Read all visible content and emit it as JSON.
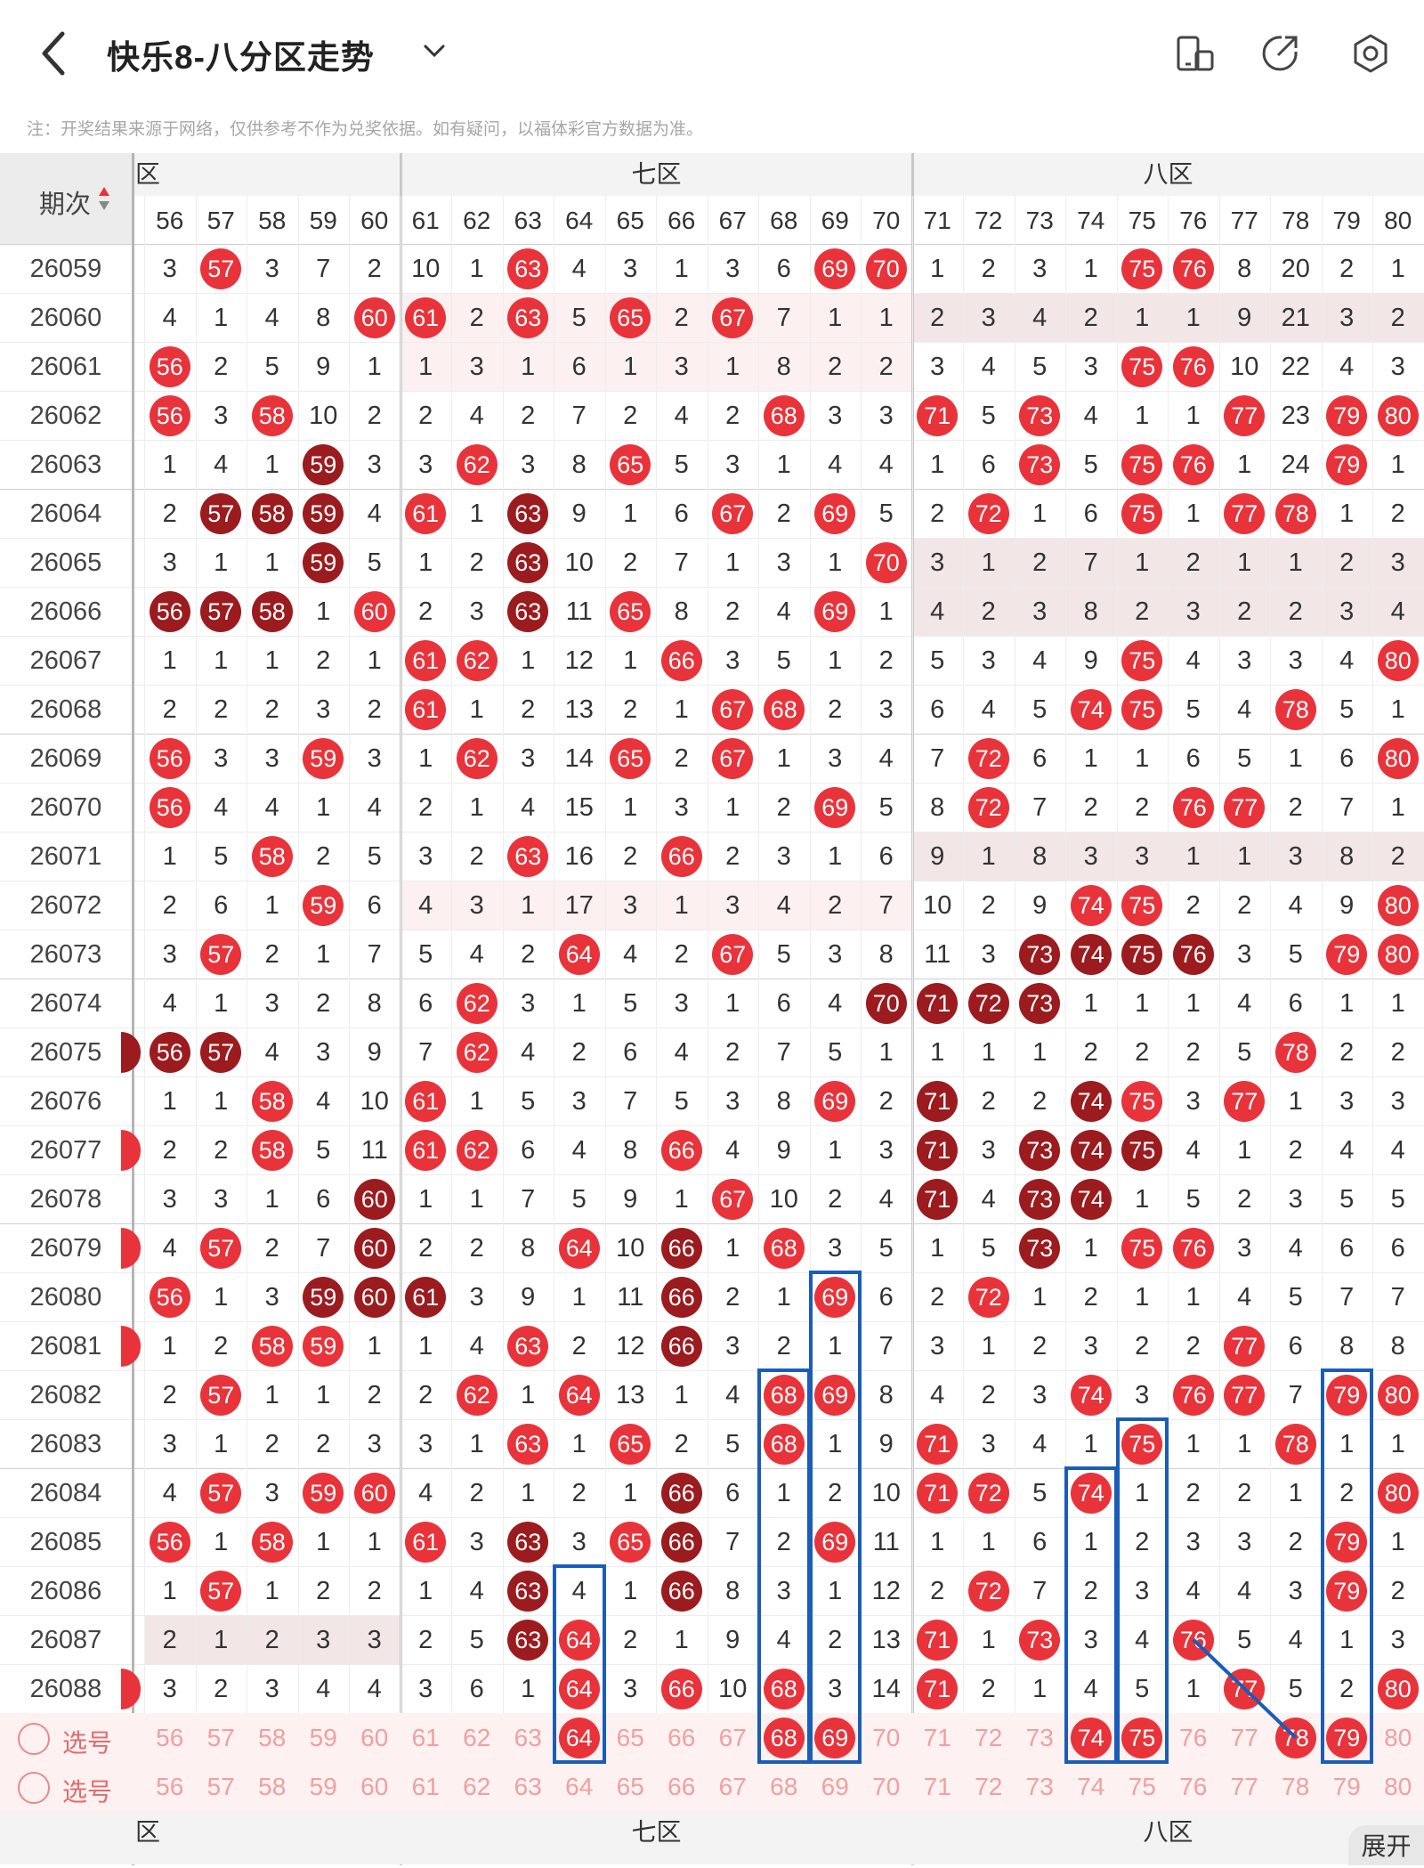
{
  "header": {
    "title": "快乐8-八分区走势",
    "back_icon": "chevron-left-icon",
    "dropdown_icon": "chevron-down-icon",
    "icons": [
      "device-switch-icon",
      "share-icon",
      "settings-icon"
    ]
  },
  "notice": "注：开奖结果来源于网络，仅供参考不作为兑奖依据。如有疑问，以福体彩官方数据为准。",
  "table": {
    "period_header": "期次",
    "zones": [
      {
        "label": "六区",
        "visible_text": "区"
      },
      {
        "label": "七区",
        "visible_text": "七区"
      },
      {
        "label": "八区",
        "visible_text": "八区"
      }
    ],
    "columns": [
      56,
      57,
      58,
      59,
      60,
      61,
      62,
      63,
      64,
      65,
      66,
      67,
      68,
      69,
      70,
      71,
      72,
      73,
      74,
      75,
      76,
      77,
      78,
      79,
      80
    ],
    "rows": [
      {
        "p": "26059",
        "v": [
          3,
          "R57",
          3,
          7,
          2,
          10,
          1,
          "R63",
          4,
          3,
          1,
          3,
          6,
          "R69",
          "R70",
          1,
          2,
          3,
          1,
          "R75",
          "R76",
          8,
          20,
          2,
          1
        ]
      },
      {
        "p": "26060",
        "v": [
          4,
          1,
          4,
          8,
          "R60",
          "R61",
          2,
          "R63",
          5,
          "R65",
          2,
          "R67",
          7,
          1,
          1,
          2,
          3,
          4,
          2,
          1,
          1,
          9,
          21,
          3,
          2
        ]
      },
      {
        "p": "26061",
        "v": [
          "R56",
          2,
          5,
          9,
          1,
          1,
          3,
          1,
          6,
          1,
          3,
          1,
          8,
          2,
          2,
          3,
          4,
          5,
          3,
          "R75",
          "R76",
          10,
          22,
          4,
          3
        ]
      },
      {
        "p": "26062",
        "v": [
          "R56",
          3,
          "R58",
          10,
          2,
          2,
          4,
          2,
          7,
          2,
          4,
          2,
          "R68",
          3,
          3,
          "R71",
          5,
          "R73",
          4,
          1,
          1,
          "R77",
          23,
          "R79",
          "R80"
        ]
      },
      {
        "p": "26063",
        "v": [
          1,
          4,
          1,
          "D59",
          3,
          3,
          "R62",
          3,
          8,
          "R65",
          5,
          3,
          1,
          4,
          4,
          1,
          6,
          "R73",
          5,
          "R75",
          "R76",
          1,
          24,
          "R79",
          1
        ]
      },
      {
        "p": "26064",
        "v": [
          2,
          "D57",
          "D58",
          "D59",
          4,
          "R61",
          1,
          "D63",
          9,
          1,
          6,
          "R67",
          2,
          "R69",
          5,
          2,
          "R72",
          1,
          6,
          "R75",
          1,
          "R77",
          "R78",
          1,
          2
        ]
      },
      {
        "p": "26065",
        "v": [
          3,
          1,
          1,
          "D59",
          5,
          1,
          2,
          "D63",
          10,
          2,
          7,
          1,
          3,
          1,
          "R70",
          3,
          1,
          2,
          7,
          1,
          2,
          1,
          1,
          2,
          3
        ]
      },
      {
        "p": "26066",
        "v": [
          "D56",
          "D57",
          "D58",
          1,
          "R60",
          2,
          3,
          "D63",
          11,
          "R65",
          8,
          2,
          4,
          "R69",
          1,
          4,
          2,
          3,
          8,
          2,
          3,
          2,
          2,
          3,
          4
        ]
      },
      {
        "p": "26067",
        "v": [
          1,
          1,
          1,
          2,
          1,
          "R61",
          "R62",
          1,
          12,
          1,
          "R66",
          3,
          5,
          1,
          2,
          5,
          3,
          4,
          9,
          "R75",
          4,
          3,
          3,
          4,
          "R80"
        ]
      },
      {
        "p": "26068",
        "v": [
          2,
          2,
          2,
          3,
          2,
          "R61",
          1,
          2,
          13,
          2,
          1,
          "R67",
          "R68",
          2,
          3,
          6,
          4,
          5,
          "R74",
          "R75",
          5,
          4,
          "R78",
          5,
          1
        ]
      },
      {
        "p": "26069",
        "v": [
          "R56",
          3,
          3,
          "R59",
          3,
          1,
          "R62",
          3,
          14,
          "R65",
          2,
          "R67",
          1,
          3,
          4,
          7,
          "R72",
          6,
          1,
          1,
          6,
          5,
          1,
          6,
          "R80"
        ]
      },
      {
        "p": "26070",
        "v": [
          "R56",
          4,
          4,
          1,
          4,
          2,
          1,
          4,
          15,
          1,
          3,
          1,
          2,
          "R69",
          5,
          8,
          "R72",
          7,
          2,
          2,
          "R76",
          "R77",
          2,
          7,
          1
        ]
      },
      {
        "p": "26071",
        "v": [
          1,
          5,
          "R58",
          2,
          5,
          3,
          2,
          "R63",
          16,
          2,
          "R66",
          2,
          3,
          1,
          6,
          9,
          1,
          8,
          3,
          3,
          1,
          1,
          3,
          8,
          2
        ]
      },
      {
        "p": "26072",
        "v": [
          2,
          6,
          1,
          "R59",
          6,
          4,
          3,
          1,
          17,
          3,
          1,
          3,
          4,
          2,
          7,
          10,
          2,
          9,
          "R74",
          "R75",
          2,
          2,
          4,
          9,
          "R80"
        ]
      },
      {
        "p": "26073",
        "v": [
          3,
          "R57",
          2,
          1,
          7,
          5,
          4,
          2,
          "R64",
          4,
          2,
          "R67",
          5,
          3,
          8,
          11,
          3,
          "D73",
          "D74",
          "D75",
          "D76",
          3,
          5,
          "R79",
          "R80"
        ]
      },
      {
        "p": "26074",
        "v": [
          4,
          1,
          3,
          2,
          8,
          6,
          "R62",
          3,
          1,
          5,
          3,
          1,
          6,
          4,
          "D70",
          "D71",
          "D72",
          "D73",
          1,
          1,
          1,
          4,
          6,
          1,
          1
        ]
      },
      {
        "p": "26075",
        "v": [
          "D56",
          "D57",
          4,
          3,
          9,
          7,
          "R62",
          4,
          2,
          6,
          4,
          2,
          7,
          5,
          1,
          1,
          1,
          1,
          2,
          2,
          2,
          5,
          "R78",
          2,
          2
        ]
      },
      {
        "p": "26076",
        "v": [
          1,
          1,
          "R58",
          4,
          10,
          "R61",
          1,
          5,
          3,
          7,
          5,
          3,
          8,
          "R69",
          2,
          "D71",
          2,
          2,
          "D74",
          "R75",
          3,
          "R77",
          1,
          3,
          3
        ]
      },
      {
        "p": "26077",
        "v": [
          2,
          2,
          "R58",
          5,
          11,
          "R61",
          "R62",
          6,
          4,
          8,
          "R66",
          4,
          9,
          1,
          3,
          "D71",
          3,
          "D73",
          "D74",
          "D75",
          4,
          1,
          2,
          4,
          4
        ]
      },
      {
        "p": "26078",
        "v": [
          3,
          3,
          1,
          6,
          "D60",
          1,
          1,
          7,
          5,
          9,
          1,
          "R67",
          10,
          2,
          4,
          "D71",
          4,
          "D73",
          "D74",
          1,
          5,
          2,
          3,
          5,
          5
        ]
      },
      {
        "p": "26079",
        "v": [
          4,
          "R57",
          2,
          7,
          "D60",
          2,
          2,
          8,
          "R64",
          10,
          "D66",
          1,
          "R68",
          3,
          5,
          1,
          5,
          "D73",
          1,
          "R75",
          "R76",
          3,
          4,
          6,
          6
        ]
      },
      {
        "p": "26080",
        "v": [
          "R56",
          1,
          3,
          "D59",
          "D60",
          "D61",
          3,
          9,
          1,
          11,
          "D66",
          2,
          1,
          "R69",
          6,
          2,
          "R72",
          1,
          2,
          1,
          1,
          4,
          5,
          7,
          7
        ]
      },
      {
        "p": "26081",
        "v": [
          1,
          2,
          "R58",
          "R59",
          1,
          1,
          4,
          "R63",
          2,
          12,
          "D66",
          3,
          2,
          1,
          7,
          3,
          1,
          2,
          3,
          2,
          2,
          "R77",
          6,
          8,
          8
        ]
      },
      {
        "p": "26082",
        "v": [
          2,
          "R57",
          1,
          1,
          2,
          2,
          "R62",
          1,
          "R64",
          13,
          1,
          4,
          "R68",
          "R69",
          8,
          4,
          2,
          3,
          "R74",
          3,
          "R76",
          "R77",
          7,
          "R79",
          "R80"
        ]
      },
      {
        "p": "26083",
        "v": [
          3,
          1,
          2,
          2,
          3,
          3,
          1,
          "R63",
          1,
          "R65",
          2,
          5,
          "R68",
          1,
          9,
          "R71",
          3,
          4,
          1,
          "R75",
          1,
          1,
          "R78",
          1,
          1
        ]
      },
      {
        "p": "26084",
        "v": [
          4,
          "R57",
          3,
          "R59",
          "R60",
          4,
          2,
          1,
          2,
          1,
          "D66",
          6,
          1,
          2,
          10,
          "R71",
          "R72",
          5,
          "R74",
          1,
          2,
          2,
          1,
          2,
          "R80"
        ]
      },
      {
        "p": "26085",
        "v": [
          "R56",
          1,
          "R58",
          1,
          1,
          "R61",
          3,
          "D63",
          3,
          "R65",
          "D66",
          7,
          2,
          "R69",
          11,
          1,
          1,
          6,
          1,
          2,
          3,
          3,
          2,
          "R79",
          1
        ]
      },
      {
        "p": "26086",
        "v": [
          1,
          "R57",
          1,
          2,
          2,
          1,
          4,
          "D63",
          4,
          1,
          "D66",
          8,
          3,
          1,
          12,
          2,
          "R72",
          7,
          2,
          3,
          4,
          4,
          3,
          "R79",
          2
        ]
      },
      {
        "p": "26087",
        "v": [
          2,
          1,
          2,
          3,
          3,
          2,
          5,
          "D63",
          "R64",
          2,
          1,
          9,
          4,
          2,
          13,
          "R71",
          1,
          "R73",
          3,
          4,
          "R76",
          5,
          4,
          1,
          3
        ]
      },
      {
        "p": "26088",
        "v": [
          3,
          2,
          3,
          4,
          4,
          3,
          6,
          1,
          "R64",
          3,
          "R66",
          10,
          "R68",
          3,
          14,
          "R71",
          2,
          1,
          4,
          5,
          1,
          "R77",
          5,
          2,
          "R80"
        ]
      }
    ],
    "select_rows": [
      {
        "label": "选号",
        "highlight": [
          64,
          68,
          69,
          74,
          75,
          78,
          79
        ]
      },
      {
        "label": "选号",
        "highlight": []
      }
    ]
  },
  "expand_button": "展开"
}
